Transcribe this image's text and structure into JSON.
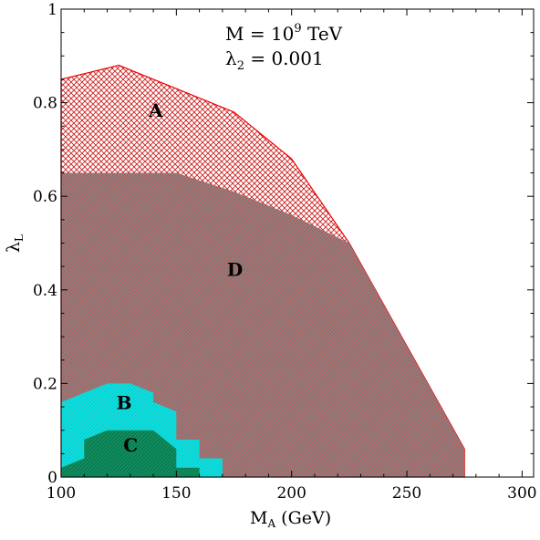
{
  "chart_data": {
    "type": "area",
    "title": "",
    "xlabel": "M",
    "xlabel_sub": "A",
    "xlabel_unit": " (GeV)",
    "ylabel": "λ",
    "ylabel_sub": "L",
    "xlim": [
      100,
      305
    ],
    "ylim": [
      0,
      1
    ],
    "xticks": [
      100,
      150,
      200,
      250,
      300
    ],
    "yticks": [
      0,
      0.2,
      0.4,
      0.6,
      0.8,
      1
    ],
    "ytick_labels": [
      "0",
      "0.2",
      "0.4",
      "0.6",
      "0.8",
      "1"
    ],
    "annotations": {
      "line1_prefix": "M = 10",
      "line1_sup": "9",
      "line1_suffix": " TeV",
      "line2_symbol": "λ",
      "line2_sub": "2",
      "line2_suffix": " = 0.001"
    },
    "regions": [
      {
        "name": "A",
        "label_at": [
          138,
          0.77
        ],
        "fill": "#ffffff",
        "hatch": "#cc2222",
        "edge": "#ee0000",
        "points": [
          [
            100,
            0
          ],
          [
            100,
            0.85
          ],
          [
            125,
            0.88
          ],
          [
            175,
            0.78
          ],
          [
            200,
            0.68
          ],
          [
            225,
            0.5
          ],
          [
            275,
            0.06
          ],
          [
            275,
            0
          ],
          [
            100,
            0
          ]
        ]
      },
      {
        "name": "D",
        "label_at": [
          172,
          0.43
        ],
        "fill": "#8a8080",
        "hatch": "#cc5555",
        "edge": "none",
        "points": [
          [
            100,
            0
          ],
          [
            100,
            0.65
          ],
          [
            150,
            0.65
          ],
          [
            175,
            0.61
          ],
          [
            200,
            0.56
          ],
          [
            225,
            0.5
          ],
          [
            275,
            0.06
          ],
          [
            275,
            0
          ],
          [
            100,
            0
          ]
        ]
      },
      {
        "name": "B",
        "label_at": [
          124,
          0.145
        ],
        "fill": "#00e5e5",
        "hatch": "#40c8c8",
        "edge": "none",
        "points": [
          [
            100,
            0
          ],
          [
            100,
            0.16
          ],
          [
            120,
            0.2
          ],
          [
            130,
            0.2
          ],
          [
            140,
            0.18
          ],
          [
            140,
            0.16
          ],
          [
            150,
            0.14
          ],
          [
            150,
            0.08
          ],
          [
            160,
            0.08
          ],
          [
            160,
            0.04
          ],
          [
            170,
            0.04
          ],
          [
            170,
            0
          ],
          [
            100,
            0
          ]
        ]
      },
      {
        "name": "C",
        "label_at": [
          127,
          0.055
        ],
        "fill": "#109060",
        "hatch": "#0a6a45",
        "edge": "none",
        "points": [
          [
            100,
            0
          ],
          [
            100,
            0.02
          ],
          [
            110,
            0.04
          ],
          [
            110,
            0.08
          ],
          [
            120,
            0.1
          ],
          [
            140,
            0.1
          ],
          [
            150,
            0.06
          ],
          [
            150,
            0.02
          ],
          [
            160,
            0.02
          ],
          [
            160,
            0
          ],
          [
            100,
            0
          ]
        ]
      }
    ]
  }
}
